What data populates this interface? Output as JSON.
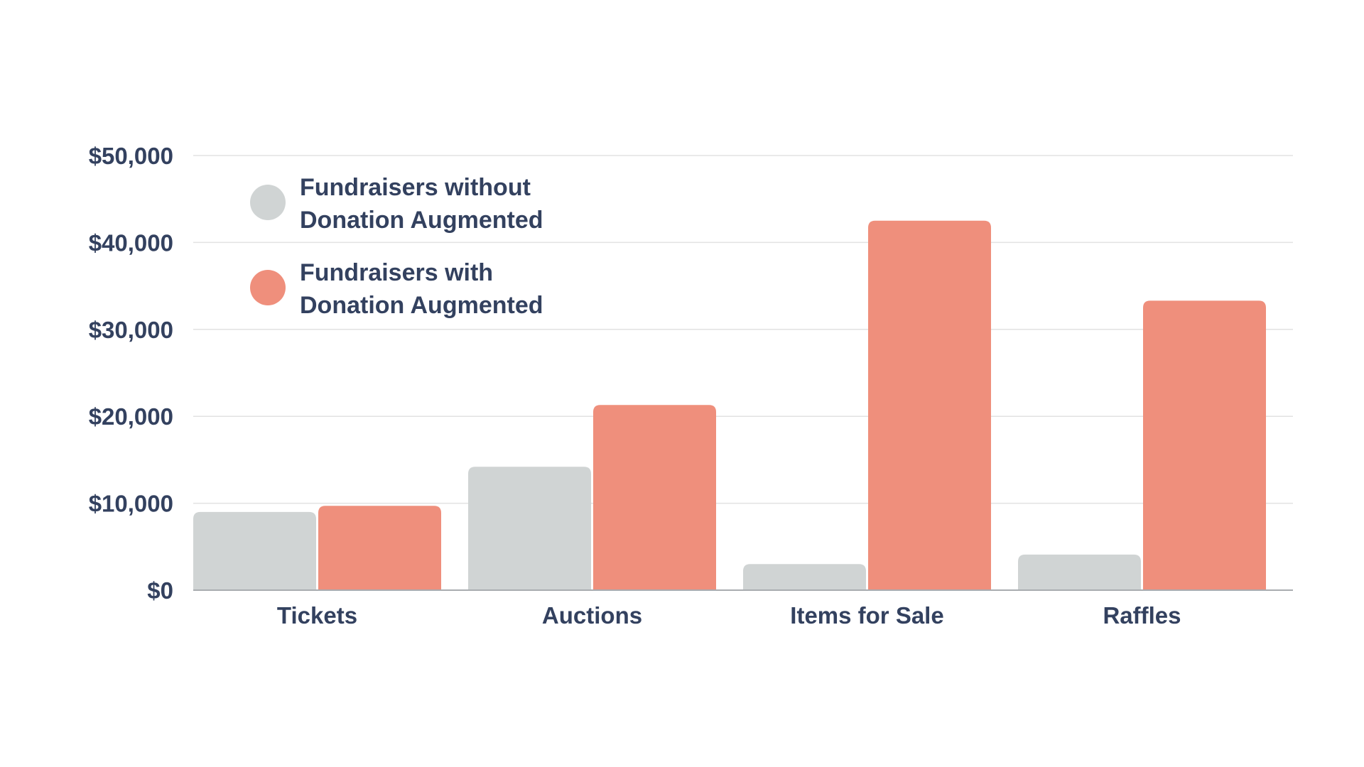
{
  "chart_data": {
    "type": "bar",
    "title": "",
    "xlabel": "",
    "ylabel": "",
    "categories": [
      "Tickets",
      "Auctions",
      "Items for Sale",
      "Raffles"
    ],
    "series": [
      {
        "name": "Fundraisers without Donation Augmented",
        "legend_lines": [
          "Fundraisers without",
          "Donation Augmented"
        ],
        "color": "#d0d4d4",
        "values": [
          9000,
          14200,
          3000,
          4100
        ]
      },
      {
        "name": "Fundraisers with Donation Augmented",
        "legend_lines": [
          "Fundraisers with",
          "Donation Augmented"
        ],
        "color": "#ef8f7c",
        "values": [
          9700,
          21300,
          42500,
          33300
        ]
      }
    ],
    "ylim": [
      0,
      50000
    ],
    "yticks": [
      0,
      10000,
      20000,
      30000,
      40000,
      50000
    ],
    "ytick_labels": [
      "$0",
      "$10,000",
      "$20,000",
      "$30,000",
      "$40,000",
      "$50,000"
    ],
    "grid": true,
    "legend_position": "top-left"
  },
  "colors": {
    "text": "#33415f",
    "gridline": "#e2e2e2",
    "baseline": "#a9acb0"
  }
}
